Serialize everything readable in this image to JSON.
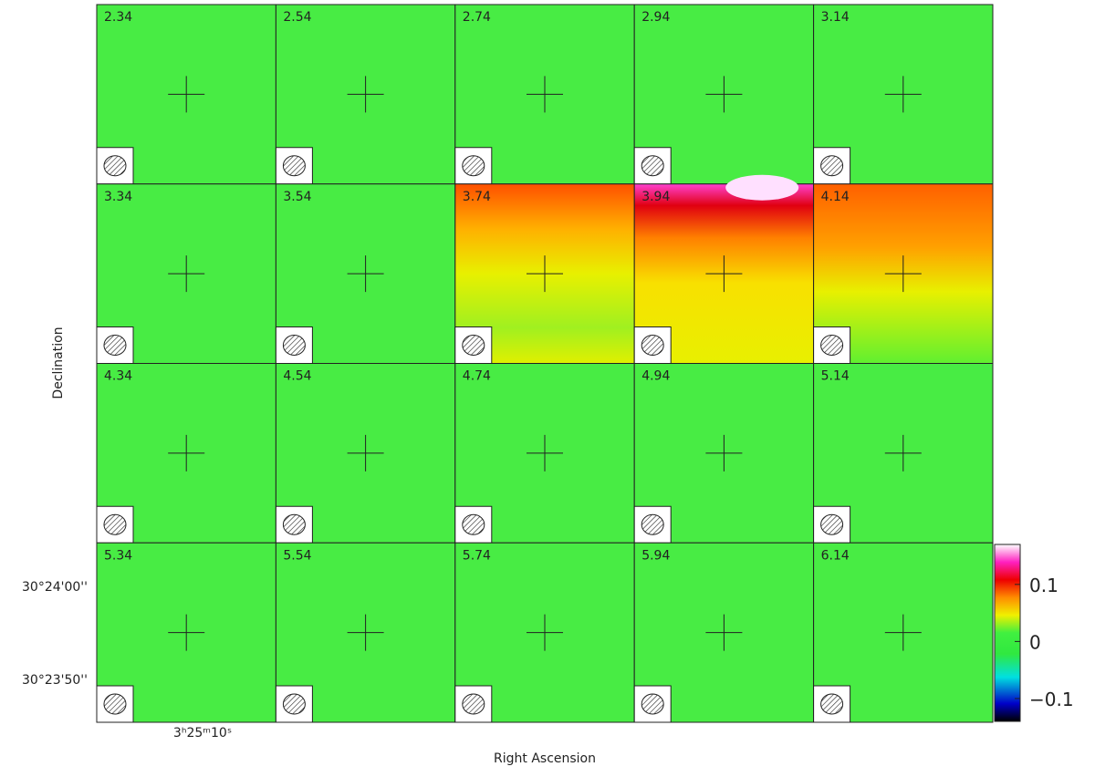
{
  "chart_data": {
    "type": "channel-map",
    "xlabel": "Right Ascension",
    "ylabel": "Declination",
    "channels": [
      "2.34",
      "2.54",
      "2.74",
      "2.94",
      "3.14",
      "3.34",
      "3.54",
      "3.74",
      "3.94",
      "4.14",
      "4.34",
      "4.54",
      "4.74",
      "4.94",
      "5.14",
      "5.34",
      "5.54",
      "5.74",
      "5.94",
      "6.14"
    ],
    "xtick_labels": [
      "3ʰ25ᵐ10ˢ"
    ],
    "ytick_labels": [
      "30°24'00''",
      "30°23'50''"
    ],
    "colorbar": {
      "clim": [
        -0.14,
        0.17
      ],
      "ticks": [
        0.1,
        0,
        {
          "value": -0.1,
          "label": "−0.1"
        }
      ]
    }
  }
}
